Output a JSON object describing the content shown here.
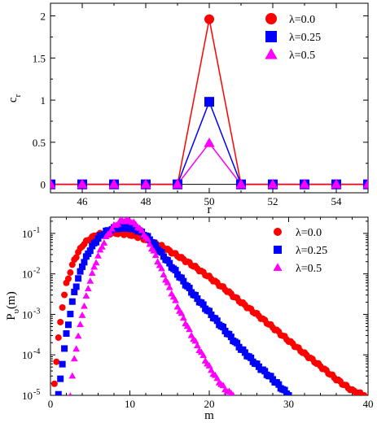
{
  "chart_data": [
    {
      "type": "line",
      "xlabel": "r",
      "ylabel_main": "c",
      "ylabel_sub": "r",
      "xlim": [
        45,
        55
      ],
      "ylim": [
        -0.1,
        2.15
      ],
      "x_ticks": [
        46,
        48,
        50,
        52,
        54
      ],
      "x_tick_labels": [
        "46",
        "48",
        "50",
        "52",
        "54"
      ],
      "y_ticks": [
        0,
        0.5,
        1,
        1.5,
        2
      ],
      "y_tick_labels": [
        "0",
        "0.5",
        "1",
        "1.5",
        "2"
      ],
      "legend_position": "top-right",
      "x": [
        45,
        46,
        47,
        48,
        49,
        50,
        51,
        52,
        53,
        54,
        55
      ],
      "series": [
        {
          "name": "λ=0.0",
          "color": "#ff0000",
          "marker": "circle",
          "values": [
            0,
            0,
            0,
            0,
            0,
            1.96,
            0,
            0,
            0,
            0,
            0
          ]
        },
        {
          "name": "λ=0.25",
          "color": "#0000ff",
          "marker": "square",
          "values": [
            0,
            0,
            0,
            0,
            0,
            0.98,
            0,
            0,
            0,
            0,
            0
          ]
        },
        {
          "name": "λ=0.5",
          "color": "#ff00ff",
          "marker": "triangle",
          "values": [
            0,
            0,
            0,
            0,
            0,
            0.49,
            0,
            0,
            0,
            0,
            0
          ]
        }
      ]
    },
    {
      "type": "scatter",
      "xlabel": "m",
      "ylabel_main": "P",
      "ylabel_sub": "υ",
      "ylabel_tail": "(m)",
      "xlim": [
        0,
        40
      ],
      "ylim_log10": [
        -5,
        -0.6
      ],
      "y_scale": "log",
      "x_ticks": [
        0,
        10,
        20,
        30,
        40
      ],
      "x_tick_labels": [
        "0",
        "10",
        "20",
        "30",
        "40"
      ],
      "y_ticks_exp": [
        -5,
        -4,
        -3,
        -2,
        -1
      ],
      "y_tick_base": "10",
      "y_tick_exps": [
        "-5",
        "-4",
        "-3",
        "-2",
        "-1"
      ],
      "legend_position": "top-right",
      "series": [
        {
          "name": "λ=0.0",
          "color": "#ff0000",
          "marker": "circle",
          "points": [
            [
              0.5,
              -4.7
            ],
            [
              1,
              -3.6
            ],
            [
              1.5,
              -2.8
            ],
            [
              2,
              -2.25
            ],
            [
              3,
              -1.65
            ],
            [
              4,
              -1.3
            ],
            [
              5,
              -1.12
            ],
            [
              6,
              -1.03
            ],
            [
              7,
              -1.0
            ],
            [
              8,
              -0.99
            ],
            [
              9,
              -1.0
            ],
            [
              10,
              -1.03
            ],
            [
              11,
              -1.08
            ],
            [
              12,
              -1.15
            ],
            [
              14,
              -1.32
            ],
            [
              16,
              -1.55
            ],
            [
              18,
              -1.8
            ],
            [
              20,
              -2.08
            ],
            [
              22,
              -2.38
            ],
            [
              24,
              -2.7
            ],
            [
              26,
              -3.0
            ],
            [
              28,
              -3.32
            ],
            [
              30,
              -3.65
            ],
            [
              32,
              -3.97
            ],
            [
              34,
              -4.28
            ],
            [
              36,
              -4.6
            ],
            [
              38,
              -4.88
            ],
            [
              39.5,
              -5.0
            ]
          ]
        },
        {
          "name": "λ=0.25",
          "color": "#0000ff",
          "marker": "square",
          "points": [
            [
              1,
              -5.0
            ],
            [
              1.5,
              -4.2
            ],
            [
              2,
              -3.5
            ],
            [
              3,
              -2.45
            ],
            [
              4,
              -1.8
            ],
            [
              5,
              -1.4
            ],
            [
              6,
              -1.12
            ],
            [
              7,
              -0.96
            ],
            [
              8,
              -0.88
            ],
            [
              9,
              -0.85
            ],
            [
              10,
              -0.86
            ],
            [
              11,
              -0.92
            ],
            [
              12,
              -1.05
            ],
            [
              13,
              -1.25
            ],
            [
              14,
              -1.5
            ],
            [
              16,
              -2.0
            ],
            [
              18,
              -2.5
            ],
            [
              20,
              -2.95
            ],
            [
              22,
              -3.4
            ],
            [
              24,
              -3.85
            ],
            [
              26,
              -4.25
            ],
            [
              28,
              -4.6
            ],
            [
              29,
              -4.8
            ],
            [
              30,
              -5.0
            ]
          ]
        },
        {
          "name": "λ=0.5",
          "color": "#ff00ff",
          "marker": "triangle",
          "points": [
            [
              2.5,
              -5.0
            ],
            [
              3,
              -4.1
            ],
            [
              4,
              -3.0
            ],
            [
              5,
              -2.15
            ],
            [
              6,
              -1.55
            ],
            [
              7,
              -1.1
            ],
            [
              8,
              -0.82
            ],
            [
              9,
              -0.68
            ],
            [
              10,
              -0.68
            ],
            [
              11,
              -0.82
            ],
            [
              12,
              -1.08
            ],
            [
              13,
              -1.45
            ],
            [
              14,
              -1.9
            ],
            [
              15,
              -2.35
            ],
            [
              16,
              -2.8
            ],
            [
              17,
              -3.2
            ],
            [
              18,
              -3.6
            ],
            [
              19,
              -3.95
            ],
            [
              20,
              -4.3
            ],
            [
              21,
              -4.6
            ],
            [
              22,
              -4.85
            ],
            [
              23,
              -5.0
            ]
          ]
        }
      ]
    }
  ]
}
